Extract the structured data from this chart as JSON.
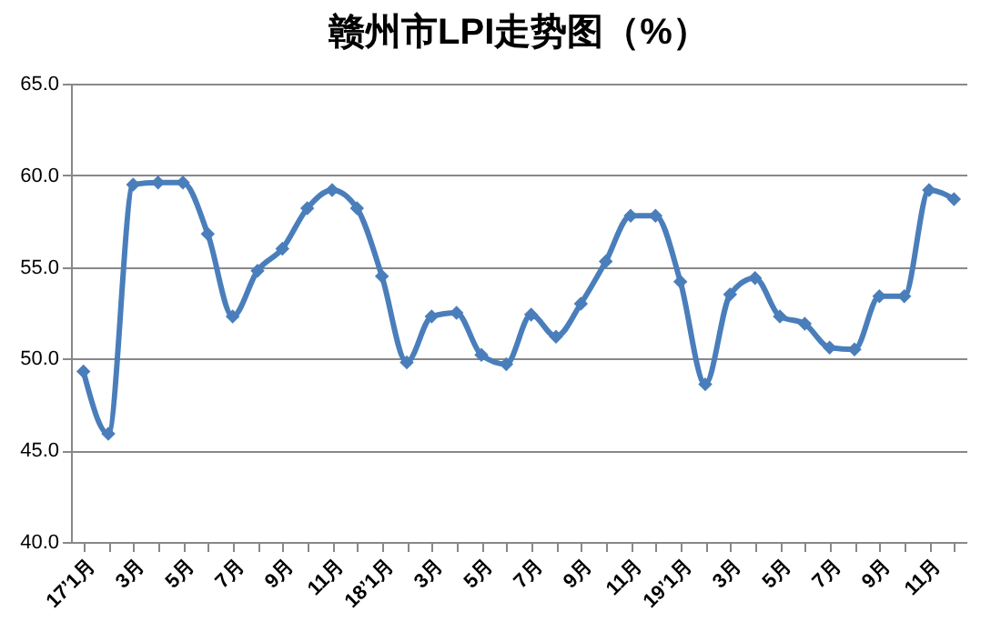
{
  "chart_data": {
    "type": "line",
    "title": "赣州市LPI走势图（%）",
    "categories": [
      "17’1月",
      null,
      "3月",
      null,
      "5月",
      null,
      "7月",
      null,
      "9月",
      null,
      "11月",
      null,
      "18’1月",
      null,
      "3月",
      null,
      "5月",
      null,
      "7月",
      null,
      "9月",
      null,
      "11月",
      null,
      "19’1月",
      null,
      "3月",
      null,
      "5月",
      null,
      "7月",
      null,
      "9月",
      null,
      "11月",
      null
    ],
    "series": [
      {
        "color": "#4a7ebb",
        "values": [
          49.3,
          45.9,
          59.5,
          59.6,
          59.6,
          56.8,
          52.3,
          54.8,
          56.0,
          58.2,
          59.2,
          58.2,
          54.5,
          49.8,
          52.3,
          52.5,
          50.2,
          49.7,
          52.4,
          51.2,
          53.0,
          55.3,
          57.8,
          57.8,
          54.2,
          48.6,
          53.5,
          54.4,
          52.3,
          51.9,
          50.6,
          50.5,
          53.4,
          53.4,
          59.2,
          58.7
        ]
      }
    ],
    "ylim": [
      40,
      65
    ],
    "yticks": [
      {
        "value": 40,
        "label": "40.0"
      },
      {
        "value": 45,
        "label": "45.0"
      },
      {
        "value": 50,
        "label": "50.0"
      },
      {
        "value": 55,
        "label": "55.0"
      },
      {
        "value": 60,
        "label": "60.0"
      },
      {
        "value": 65,
        "label": "65.0"
      }
    ],
    "grid": "y",
    "marker": "diamond",
    "line_style": "solid",
    "legend": false
  }
}
